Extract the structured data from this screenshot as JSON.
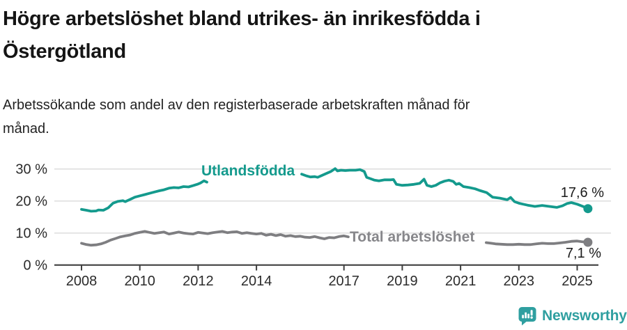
{
  "header": {
    "title_lines": [
      "Högre arbetslöshet bland utrikes- än inrikesfödda i",
      "Östergötland"
    ],
    "subtitle_lines": [
      "Arbetssökande som andel av den registerbaserade arbetskraften månad för",
      "månad."
    ]
  },
  "footer": {
    "brand": "Newsworthy",
    "brand_color": "#2f9fa0"
  },
  "chart_data": {
    "type": "line",
    "title": "Högre arbetslöshet bland utrikes- än inrikesfödda i Östergötland",
    "subtitle": "Arbetssökande som andel av den registerbaserade arbetskraften månad för månad.",
    "unit": "%",
    "grid": "horizontal-only",
    "axes": {
      "x_ticks": [
        {
          "year": 2008,
          "label": "2008"
        },
        {
          "year": 2010,
          "label": "2010"
        },
        {
          "year": 2012,
          "label": "2012"
        },
        {
          "year": 2014,
          "label": "2014"
        },
        {
          "year": 2017,
          "label": "2017"
        },
        {
          "year": 2019,
          "label": "2019"
        },
        {
          "year": 2021,
          "label": "2021"
        },
        {
          "year": 2023,
          "label": "2023"
        },
        {
          "year": 2025,
          "label": "2025"
        }
      ],
      "y_ticks": [
        {
          "value": 0,
          "label": "0 %"
        },
        {
          "value": 10,
          "label": "10 %"
        },
        {
          "value": 20,
          "label": "20 %"
        },
        {
          "value": 30,
          "label": "30 %"
        }
      ],
      "y_gridlines": [
        10,
        20,
        30
      ],
      "xlim": [
        2008,
        2025.9
      ],
      "ylim": [
        0,
        32
      ]
    },
    "series": [
      {
        "name": "Utlandsfödda",
        "color": "#149a8d",
        "end_label": "17,6 %",
        "end_value": 17.6,
        "segments": [
          [
            [
              2008.0,
              17.4
            ],
            [
              2008.17,
              17.1
            ],
            [
              2008.33,
              16.8
            ],
            [
              2008.5,
              16.9
            ],
            [
              2008.58,
              17.2
            ],
            [
              2008.75,
              17.1
            ],
            [
              2008.92,
              17.9
            ],
            [
              2009.08,
              19.3
            ],
            [
              2009.25,
              19.9
            ],
            [
              2009.42,
              20.1
            ],
            [
              2009.5,
              19.8
            ],
            [
              2009.67,
              20.5
            ],
            [
              2009.83,
              21.2
            ],
            [
              2010.0,
              21.6
            ],
            [
              2010.17,
              22.0
            ],
            [
              2010.33,
              22.4
            ],
            [
              2010.5,
              22.8
            ],
            [
              2010.67,
              23.2
            ],
            [
              2010.83,
              23.5
            ],
            [
              2011.0,
              24.0
            ],
            [
              2011.17,
              24.2
            ],
            [
              2011.33,
              24.1
            ],
            [
              2011.5,
              24.5
            ],
            [
              2011.67,
              24.4
            ],
            [
              2011.83,
              24.8
            ],
            [
              2012.0,
              25.3
            ],
            [
              2012.08,
              25.6
            ],
            [
              2012.2,
              26.3
            ],
            [
              2012.3,
              25.9
            ]
          ],
          [
            [
              2015.55,
              28.4
            ],
            [
              2015.7,
              27.9
            ],
            [
              2015.85,
              27.5
            ],
            [
              2016.0,
              27.6
            ],
            [
              2016.1,
              27.4
            ],
            [
              2016.25,
              28.0
            ],
            [
              2016.4,
              28.6
            ],
            [
              2016.55,
              29.2
            ],
            [
              2016.7,
              30.1
            ],
            [
              2016.78,
              29.4
            ],
            [
              2016.9,
              29.6
            ],
            [
              2017.05,
              29.5
            ],
            [
              2017.2,
              29.6
            ],
            [
              2017.4,
              29.6
            ],
            [
              2017.55,
              29.8
            ],
            [
              2017.7,
              29.2
            ],
            [
              2017.78,
              27.4
            ],
            [
              2017.9,
              27.0
            ],
            [
              2018.05,
              26.5
            ],
            [
              2018.2,
              26.3
            ],
            [
              2018.4,
              26.6
            ],
            [
              2018.6,
              26.6
            ],
            [
              2018.7,
              26.7
            ],
            [
              2018.8,
              25.2
            ],
            [
              2019.0,
              24.9
            ],
            [
              2019.2,
              25.0
            ],
            [
              2019.4,
              25.2
            ],
            [
              2019.6,
              25.5
            ],
            [
              2019.75,
              26.8
            ],
            [
              2019.85,
              24.9
            ],
            [
              2020.0,
              24.5
            ],
            [
              2020.15,
              24.9
            ],
            [
              2020.3,
              25.7
            ],
            [
              2020.45,
              26.2
            ],
            [
              2020.6,
              26.5
            ],
            [
              2020.75,
              26.1
            ],
            [
              2020.85,
              25.2
            ],
            [
              2020.95,
              25.5
            ],
            [
              2021.1,
              24.5
            ],
            [
              2021.3,
              24.2
            ],
            [
              2021.5,
              23.8
            ],
            [
              2021.65,
              23.3
            ],
            [
              2021.9,
              22.6
            ],
            [
              2022.1,
              21.2
            ],
            [
              2022.35,
              20.9
            ],
            [
              2022.6,
              20.4
            ],
            [
              2022.72,
              21.1
            ],
            [
              2022.85,
              19.8
            ],
            [
              2023.0,
              19.3
            ],
            [
              2023.15,
              19.0
            ],
            [
              2023.3,
              18.7
            ],
            [
              2023.55,
              18.3
            ],
            [
              2023.8,
              18.6
            ],
            [
              2024.05,
              18.3
            ],
            [
              2024.3,
              18.0
            ],
            [
              2024.5,
              18.5
            ],
            [
              2024.65,
              19.2
            ],
            [
              2024.8,
              19.5
            ],
            [
              2025.0,
              19.0
            ],
            [
              2025.2,
              18.3
            ],
            [
              2025.37,
              17.6
            ]
          ]
        ]
      },
      {
        "name": "Total arbetslöshet",
        "color": "#7e7e81",
        "label_color": "#87878b",
        "end_label": "7,1 %",
        "end_value": 7.1,
        "segments": [
          [
            [
              2008.0,
              6.8
            ],
            [
              2008.17,
              6.4
            ],
            [
              2008.33,
              6.2
            ],
            [
              2008.5,
              6.3
            ],
            [
              2008.67,
              6.6
            ],
            [
              2008.83,
              7.1
            ],
            [
              2009.0,
              7.8
            ],
            [
              2009.17,
              8.3
            ],
            [
              2009.33,
              8.8
            ],
            [
              2009.5,
              9.1
            ],
            [
              2009.67,
              9.4
            ],
            [
              2009.83,
              9.9
            ],
            [
              2010.0,
              10.2
            ],
            [
              2010.17,
              10.5
            ],
            [
              2010.33,
              10.2
            ],
            [
              2010.5,
              9.9
            ],
            [
              2010.67,
              10.1
            ],
            [
              2010.83,
              10.3
            ],
            [
              2011.0,
              9.7
            ],
            [
              2011.17,
              10.0
            ],
            [
              2011.33,
              10.3
            ],
            [
              2011.5,
              10.0
            ],
            [
              2011.67,
              9.8
            ],
            [
              2011.83,
              9.7
            ],
            [
              2012.0,
              10.2
            ],
            [
              2012.17,
              10.0
            ],
            [
              2012.33,
              9.8
            ],
            [
              2012.5,
              10.1
            ],
            [
              2012.67,
              10.3
            ],
            [
              2012.83,
              10.5
            ],
            [
              2013.0,
              10.1
            ],
            [
              2013.17,
              10.3
            ],
            [
              2013.33,
              10.4
            ],
            [
              2013.5,
              9.9
            ],
            [
              2013.67,
              10.1
            ],
            [
              2013.83,
              9.9
            ],
            [
              2014.0,
              9.7
            ],
            [
              2014.17,
              9.9
            ],
            [
              2014.33,
              9.3
            ],
            [
              2014.5,
              9.6
            ],
            [
              2014.67,
              9.2
            ],
            [
              2014.83,
              9.5
            ],
            [
              2015.0,
              9.0
            ],
            [
              2015.17,
              9.2
            ],
            [
              2015.33,
              8.9
            ],
            [
              2015.5,
              9.0
            ],
            [
              2015.67,
              8.7
            ],
            [
              2015.83,
              8.6
            ],
            [
              2016.0,
              8.9
            ],
            [
              2016.17,
              8.5
            ],
            [
              2016.33,
              8.2
            ],
            [
              2016.5,
              8.6
            ],
            [
              2016.67,
              8.5
            ],
            [
              2016.83,
              8.9
            ],
            [
              2017.0,
              9.1
            ],
            [
              2017.15,
              8.8
            ]
          ],
          [
            [
              2021.88,
              7.0
            ],
            [
              2022.05,
              6.8
            ],
            [
              2022.2,
              6.6
            ],
            [
              2022.4,
              6.5
            ],
            [
              2022.6,
              6.4
            ],
            [
              2022.8,
              6.4
            ],
            [
              2023.0,
              6.5
            ],
            [
              2023.2,
              6.4
            ],
            [
              2023.4,
              6.4
            ],
            [
              2023.6,
              6.6
            ],
            [
              2023.8,
              6.8
            ],
            [
              2024.0,
              6.7
            ],
            [
              2024.2,
              6.7
            ],
            [
              2024.4,
              6.9
            ],
            [
              2024.6,
              7.1
            ],
            [
              2024.8,
              7.4
            ],
            [
              2025.0,
              7.5
            ],
            [
              2025.15,
              7.3
            ],
            [
              2025.37,
              7.1
            ]
          ]
        ]
      }
    ],
    "legend_position": "inline-line-labels"
  }
}
